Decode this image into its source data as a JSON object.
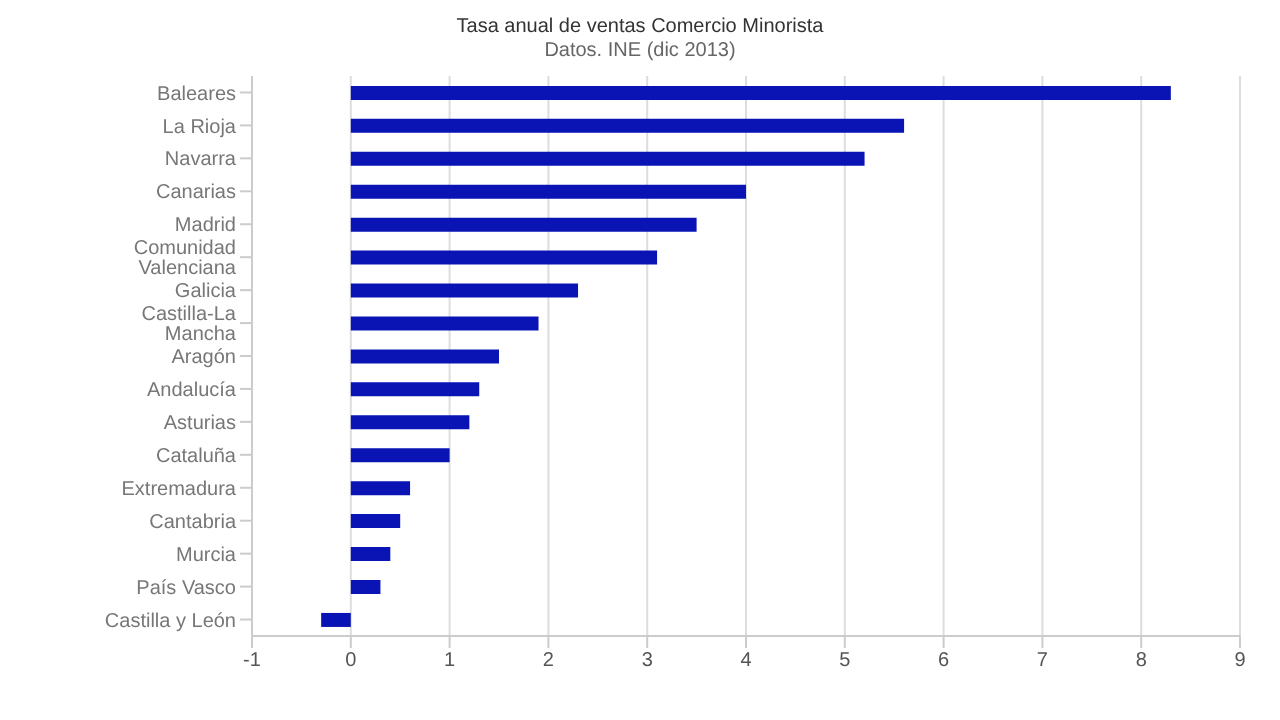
{
  "chart_data": {
    "type": "bar",
    "orientation": "horizontal",
    "title": "Tasa anual de ventas Comercio Minorista",
    "subtitle": "Datos. INE (dic 2013)",
    "categories": [
      "Baleares",
      "La Rioja",
      "Navarra",
      "Canarias",
      "Madrid",
      "Comunidad Valenciana",
      "Galicia",
      "Castilla-La Mancha",
      "Aragón",
      "Andalucía",
      "Asturias",
      "Cataluña",
      "Extremadura",
      "Cantabria",
      "Murcia",
      "País Vasco",
      "Castilla y León"
    ],
    "values": [
      8.3,
      5.6,
      5.2,
      4.0,
      3.5,
      3.1,
      2.3,
      1.9,
      1.5,
      1.3,
      1.2,
      1.0,
      0.6,
      0.5,
      0.4,
      0.3,
      -0.3
    ],
    "color": "#0a14b4",
    "xlim": [
      -1,
      9
    ],
    "xticks": [
      -1,
      0,
      1,
      2,
      3,
      4,
      5,
      6,
      7,
      8,
      9
    ],
    "grid": "x",
    "legend": false
  }
}
